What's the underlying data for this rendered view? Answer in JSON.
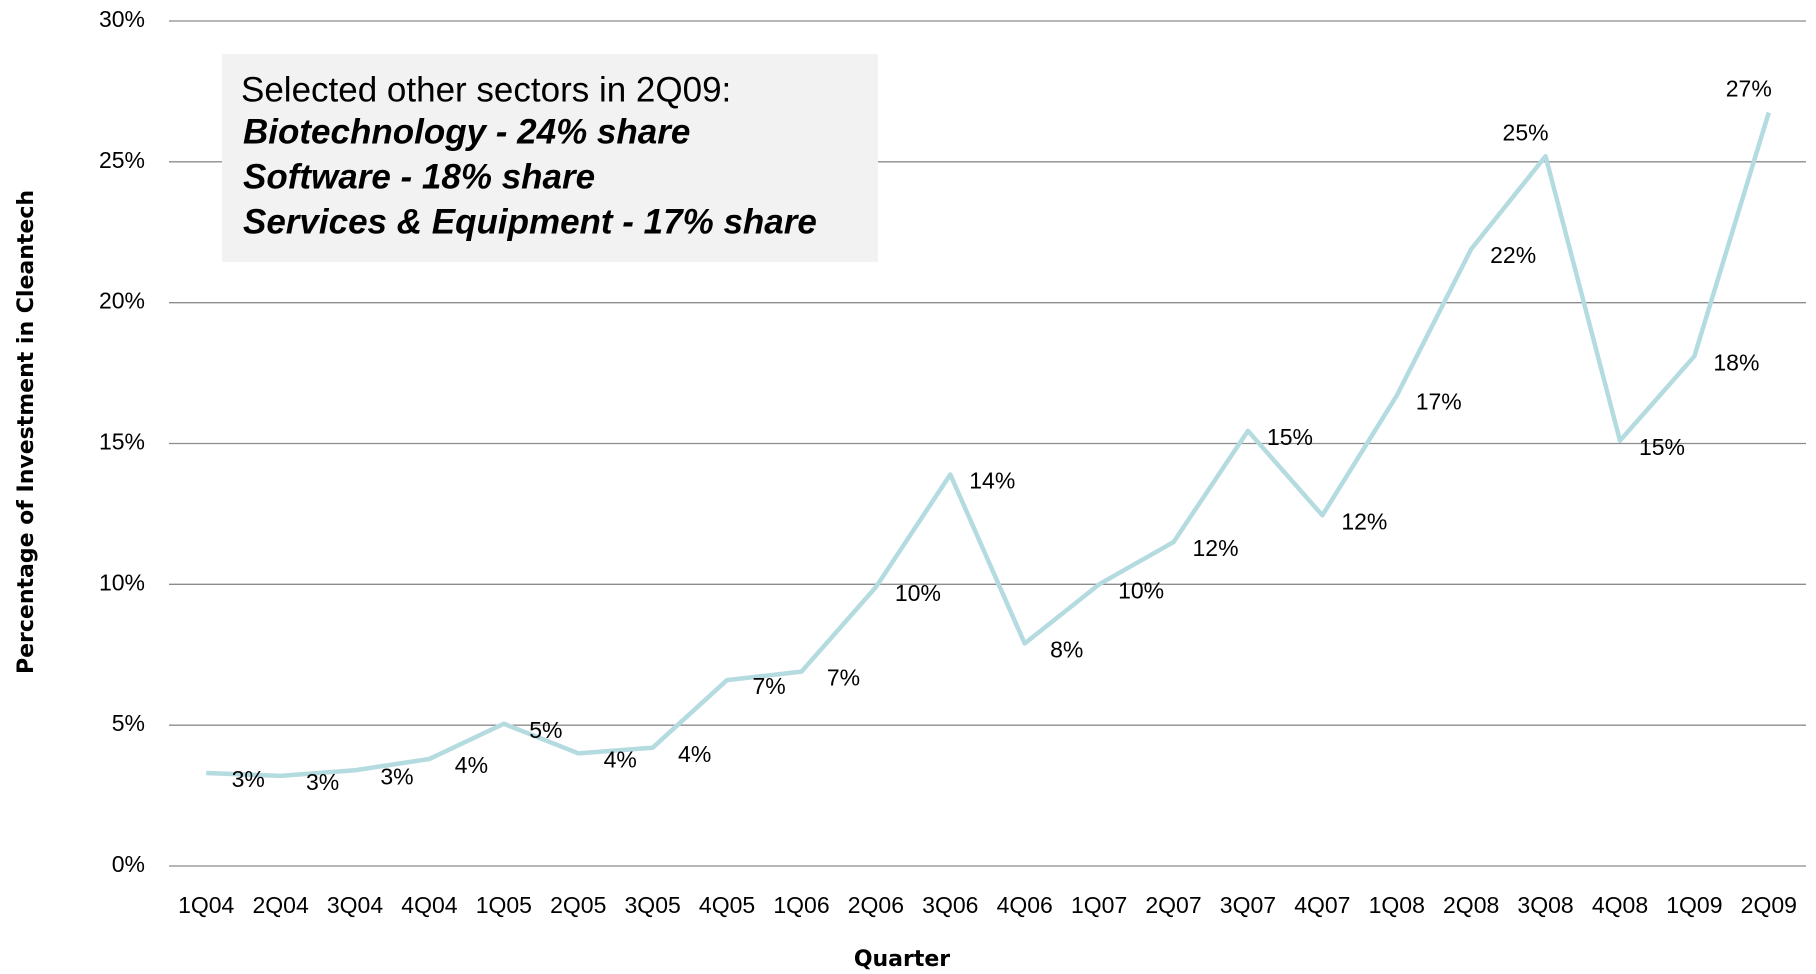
{
  "chart_data": {
    "type": "line",
    "xlabel": "Quarter",
    "ylabel": "Percentage of Investment in Cleantech",
    "categories": [
      "1Q04",
      "2Q04",
      "3Q04",
      "4Q04",
      "1Q05",
      "2Q05",
      "3Q05",
      "4Q05",
      "1Q06",
      "2Q06",
      "3Q06",
      "4Q06",
      "1Q07",
      "2Q07",
      "3Q07",
      "4Q07",
      "1Q08",
      "2Q08",
      "3Q08",
      "4Q08",
      "1Q09",
      "2Q09"
    ],
    "series": [
      {
        "name": "Cleantech share",
        "color": "#b4dbe0",
        "values": [
          3.3,
          3.2,
          3.4,
          3.8,
          5.05,
          4.0,
          4.2,
          6.6,
          6.9,
          9.9,
          13.9,
          7.9,
          10.0,
          11.5,
          15.45,
          12.45,
          16.7,
          21.9,
          25.2,
          15.1,
          18.1,
          26.75
        ],
        "value_labels": [
          "3%",
          "3%",
          "3%",
          "4%",
          "5%",
          "4%",
          "4%",
          "7%",
          "7%",
          "10%",
          "14%",
          "8%",
          "10%",
          "12%",
          "15%",
          "12%",
          "17%",
          "22%",
          "25%",
          "15%",
          "18%",
          "27%"
        ]
      }
    ],
    "ylim": [
      0,
      30
    ],
    "yticks": [
      {
        "value": 0,
        "label": "0%"
      },
      {
        "value": 5,
        "label": "5%"
      },
      {
        "value": 10,
        "label": "10%"
      },
      {
        "value": 15,
        "label": "15%"
      },
      {
        "value": 20,
        "label": "20%"
      },
      {
        "value": 25,
        "label": "25%"
      },
      {
        "value": 30,
        "label": "30%"
      }
    ],
    "grid": true,
    "annotation": {
      "title": "Selected other sectors in 2Q09:",
      "lines": [
        "Biotechnology - 24% share",
        "Software - 18% share",
        "Services & Equipment - 17% share"
      ]
    }
  }
}
